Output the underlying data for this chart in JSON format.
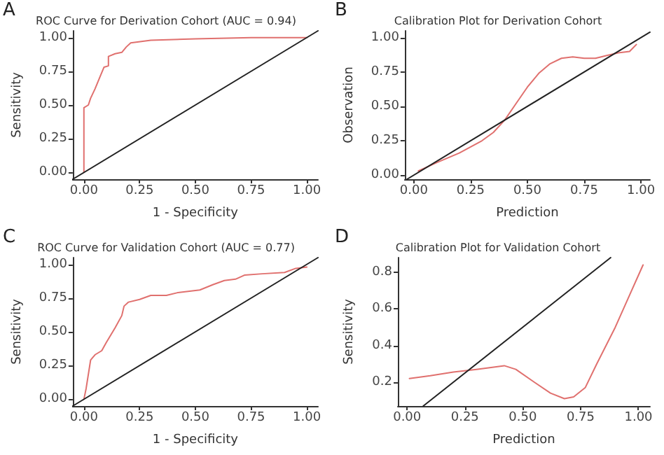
{
  "chart_data": [
    {
      "type": "line",
      "title": "ROC Curve for Derivation Cohort (AUC = 0.94)",
      "xlabel": "1 - Specificity",
      "ylabel": "Sensitivity",
      "annotations": [
        "A"
      ],
      "xlim": [
        -0.05,
        1.05
      ],
      "ylim": [
        -0.05,
        1.05
      ],
      "xticks": [
        {
          "value": 0,
          "label": "0.00"
        },
        {
          "value": 0.25,
          "label": "0.25"
        },
        {
          "value": 0.5,
          "label": "0.50"
        },
        {
          "value": 0.75,
          "label": "0.75"
        },
        {
          "value": 1,
          "label": "1.00"
        }
      ],
      "yticks": [
        {
          "value": 0,
          "label": "0.00"
        },
        {
          "value": 0.25,
          "label": "0.25"
        },
        {
          "value": 0.5,
          "label": "0.50"
        },
        {
          "value": 0.75,
          "label": "0.75"
        },
        {
          "value": 1,
          "label": "1.00"
        }
      ],
      "grid": false,
      "marker": "none",
      "line_style": "solid",
      "series": [
        {
          "color": "#e0706e",
          "x": [
            0,
            0,
            0.02,
            0.03,
            0.05,
            0.07,
            0.09,
            0.11,
            0.11,
            0.14,
            0.17,
            0.19,
            0.21,
            0.3,
            0.5,
            0.75,
            1
          ],
          "values": [
            0,
            0.48,
            0.5,
            0.55,
            0.62,
            0.7,
            0.78,
            0.79,
            0.86,
            0.88,
            0.89,
            0.93,
            0.96,
            0.98,
            0.99,
            1,
            1
          ]
        },
        {
          "color": "#222222",
          "x": [
            -0.05,
            1.05
          ],
          "values": [
            -0.05,
            1.05
          ]
        }
      ]
    },
    {
      "type": "line",
      "title": "Calibration Plot for Derivation Cohort",
      "xlabel": "Prediction",
      "ylabel": "Observation",
      "annotations": [
        "B"
      ],
      "xlim": [
        -0.04,
        1.04
      ],
      "ylim": [
        -0.03,
        1.05
      ],
      "xticks": [
        {
          "value": 0,
          "label": "0.00"
        },
        {
          "value": 0.25,
          "label": "0.25"
        },
        {
          "value": 0.5,
          "label": "0.50"
        },
        {
          "value": 0.75,
          "label": "0.75"
        },
        {
          "value": 1,
          "label": "1.00"
        }
      ],
      "yticks": [
        {
          "value": 0,
          "label": "0.00"
        },
        {
          "value": 0.25,
          "label": "0.25"
        },
        {
          "value": 0.5,
          "label": "0.50"
        },
        {
          "value": 0.75,
          "label": "0.75"
        },
        {
          "value": 1,
          "label": "1.00"
        }
      ],
      "grid": false,
      "marker": "none",
      "line_style": "solid",
      "series": [
        {
          "color": "#e0706e",
          "x": [
            0.02,
            0.1,
            0.2,
            0.3,
            0.35,
            0.4,
            0.45,
            0.5,
            0.55,
            0.6,
            0.65,
            0.7,
            0.75,
            0.8,
            0.85,
            0.9,
            0.95,
            0.98
          ],
          "values": [
            0.03,
            0.09,
            0.16,
            0.25,
            0.31,
            0.4,
            0.52,
            0.64,
            0.74,
            0.81,
            0.85,
            0.86,
            0.85,
            0.85,
            0.87,
            0.89,
            0.9,
            0.95
          ]
        },
        {
          "color": "#222222",
          "x": [
            -0.03,
            1.04
          ],
          "values": [
            -0.03,
            1.04
          ]
        }
      ]
    },
    {
      "type": "line",
      "title": "ROC Curve for Validation Cohort (AUC = 0.77)",
      "xlabel": "1 - Specificity",
      "ylabel": "Sensitivity",
      "annotations": [
        "C"
      ],
      "xlim": [
        -0.05,
        1.05
      ],
      "ylim": [
        -0.05,
        1.05
      ],
      "xticks": [
        {
          "value": 0,
          "label": "0.00"
        },
        {
          "value": 0.25,
          "label": "0.25"
        },
        {
          "value": 0.5,
          "label": "0.50"
        },
        {
          "value": 0.75,
          "label": "0.75"
        },
        {
          "value": 1,
          "label": "1.00"
        }
      ],
      "yticks": [
        {
          "value": 0,
          "label": "0.00"
        },
        {
          "value": 0.25,
          "label": "0.25"
        },
        {
          "value": 0.5,
          "label": "0.50"
        },
        {
          "value": 0.75,
          "label": "0.75"
        },
        {
          "value": 1,
          "label": "1.00"
        }
      ],
      "grid": false,
      "marker": "none",
      "line_style": "solid",
      "series": [
        {
          "color": "#e0706e",
          "x": [
            0,
            0.01,
            0.03,
            0.05,
            0.08,
            0.1,
            0.14,
            0.17,
            0.18,
            0.2,
            0.25,
            0.3,
            0.37,
            0.42,
            0.52,
            0.58,
            0.63,
            0.68,
            0.72,
            0.8,
            0.9,
            0.95,
            1
          ],
          "values": [
            0,
            0.08,
            0.29,
            0.33,
            0.36,
            0.42,
            0.53,
            0.62,
            0.69,
            0.72,
            0.74,
            0.77,
            0.77,
            0.79,
            0.81,
            0.85,
            0.88,
            0.89,
            0.92,
            0.93,
            0.94,
            0.97,
            0.98
          ]
        },
        {
          "color": "#222222",
          "x": [
            -0.05,
            1.05
          ],
          "values": [
            -0.05,
            1.05
          ]
        }
      ]
    },
    {
      "type": "line",
      "title": "Calibration Plot for Validation Cohort",
      "xlabel": "Prediction",
      "ylabel": "Sensitivity",
      "annotations": [
        "D"
      ],
      "xlim": [
        -0.04,
        1.05
      ],
      "ylim": [
        0.07,
        0.88
      ],
      "xticks": [
        {
          "value": 0,
          "label": "0.00"
        },
        {
          "value": 0.25,
          "label": "0.25"
        },
        {
          "value": 0.5,
          "label": "0.50"
        },
        {
          "value": 0.75,
          "label": "0.75"
        },
        {
          "value": 1,
          "label": "1.00"
        }
      ],
      "yticks": [
        0.2,
        0.4,
        0.6,
        0.8
      ],
      "grid": false,
      "marker": "none",
      "line_style": "solid",
      "series": [
        {
          "color": "#e0706e",
          "x": [
            0.01,
            0.1,
            0.2,
            0.3,
            0.42,
            0.47,
            0.55,
            0.62,
            0.68,
            0.72,
            0.77,
            0.82,
            0.9,
            0.96,
            1.02
          ],
          "values": [
            0.22,
            0.235,
            0.255,
            0.27,
            0.29,
            0.27,
            0.2,
            0.14,
            0.11,
            0.12,
            0.17,
            0.3,
            0.5,
            0.67,
            0.84
          ]
        },
        {
          "color": "#222222",
          "x": [
            0.07,
            0.88
          ],
          "values": [
            0.07,
            0.88
          ]
        }
      ]
    }
  ]
}
